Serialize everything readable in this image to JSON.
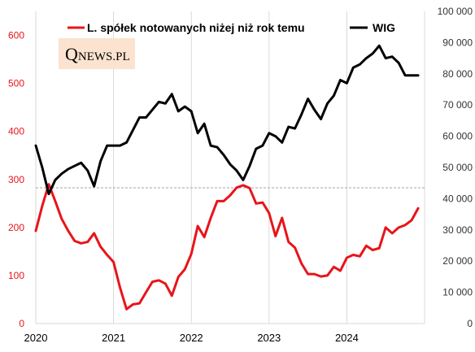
{
  "chart_data": {
    "type": "line",
    "dual_axis": true,
    "grid": true,
    "legend_placement": "top",
    "x_ticks": [
      "2020",
      "2021",
      "2022",
      "2023",
      "2024"
    ],
    "y_left": {
      "range": [
        0,
        650
      ],
      "ticks": [
        "0",
        "100",
        "200",
        "300",
        "400",
        "500",
        "600"
      ],
      "color": "#e8141a"
    },
    "y_right": {
      "range": [
        0,
        100000
      ],
      "ticks": [
        "0",
        "10 000",
        "20 000",
        "30 000",
        "40 000",
        "50 000",
        "60 000",
        "70 000",
        "80 000",
        "90 000",
        "100 000"
      ]
    },
    "reference_line": {
      "axis": "right",
      "value": 43500,
      "style": "dashed"
    },
    "series": [
      {
        "name": "L. spółek notowanych niżej niż rok temu",
        "axis": "left",
        "color": "#e8141a",
        "x": [
          2020.0,
          2020.083,
          2020.167,
          2020.25,
          2020.333,
          2020.417,
          2020.5,
          2020.583,
          2020.667,
          2020.75,
          2020.833,
          2020.917,
          2021.0,
          2021.083,
          2021.167,
          2021.25,
          2021.333,
          2021.417,
          2021.5,
          2021.583,
          2021.667,
          2021.75,
          2021.833,
          2021.917,
          2022.0,
          2022.083,
          2022.167,
          2022.25,
          2022.333,
          2022.417,
          2022.5,
          2022.583,
          2022.667,
          2022.75,
          2022.833,
          2022.917,
          2023.0,
          2023.083,
          2023.167,
          2023.25,
          2023.333,
          2023.417,
          2023.5,
          2023.583,
          2023.667,
          2023.75,
          2023.833,
          2023.917,
          2024.0,
          2024.083,
          2024.167,
          2024.25,
          2024.333,
          2024.417,
          2024.5,
          2024.583,
          2024.667,
          2024.75,
          2024.833,
          2024.917
        ],
        "values": [
          193,
          245,
          290,
          255,
          218,
          193,
          172,
          167,
          170,
          188,
          160,
          143,
          128,
          75,
          30,
          40,
          42,
          65,
          87,
          90,
          83,
          58,
          97,
          113,
          145,
          203,
          180,
          220,
          255,
          255,
          267,
          283,
          288,
          282,
          250,
          252,
          230,
          182,
          220,
          170,
          158,
          125,
          103,
          103,
          98,
          100,
          118,
          110,
          137,
          143,
          140,
          162,
          153,
          157,
          200,
          188,
          200,
          205,
          215,
          240
        ]
      },
      {
        "name": "WIG",
        "axis": "right",
        "color": "#000000",
        "x": [
          2020.0,
          2020.083,
          2020.167,
          2020.25,
          2020.333,
          2020.417,
          2020.5,
          2020.583,
          2020.667,
          2020.75,
          2020.833,
          2020.917,
          2021.0,
          2021.083,
          2021.167,
          2021.25,
          2021.333,
          2021.417,
          2021.5,
          2021.583,
          2021.667,
          2021.75,
          2021.833,
          2021.917,
          2022.0,
          2022.083,
          2022.167,
          2022.25,
          2022.333,
          2022.417,
          2022.5,
          2022.583,
          2022.667,
          2022.75,
          2022.833,
          2022.917,
          2023.0,
          2023.083,
          2023.167,
          2023.25,
          2023.333,
          2023.417,
          2023.5,
          2023.583,
          2023.667,
          2023.75,
          2023.833,
          2023.917,
          2024.0,
          2024.083,
          2024.167,
          2024.25,
          2024.333,
          2024.417,
          2024.5,
          2024.583,
          2024.667,
          2024.75,
          2024.833,
          2024.917
        ],
        "values": [
          57000,
          50000,
          41500,
          46000,
          48000,
          49500,
          50500,
          51500,
          49000,
          44000,
          52000,
          57000,
          57000,
          57000,
          58000,
          62000,
          66000,
          66000,
          68500,
          71000,
          70500,
          73500,
          68000,
          69500,
          68000,
          61000,
          64000,
          57000,
          56500,
          54000,
          51000,
          49000,
          46000,
          50500,
          56000,
          57000,
          61000,
          60000,
          58000,
          63000,
          62500,
          67000,
          72000,
          68500,
          65500,
          70500,
          73000,
          78000,
          77000,
          82000,
          83000,
          85000,
          86500,
          89000,
          85000,
          85500,
          83500,
          79500,
          79500,
          79500
        ]
      }
    ]
  },
  "legend": {
    "series1_label": "L. spółek notowanych niżej niż rok temu",
    "series2_label": "WIG"
  },
  "logo": {
    "big": "Q",
    "rest": "NEWS.PL",
    "bg_color": "#fbe3cf"
  }
}
